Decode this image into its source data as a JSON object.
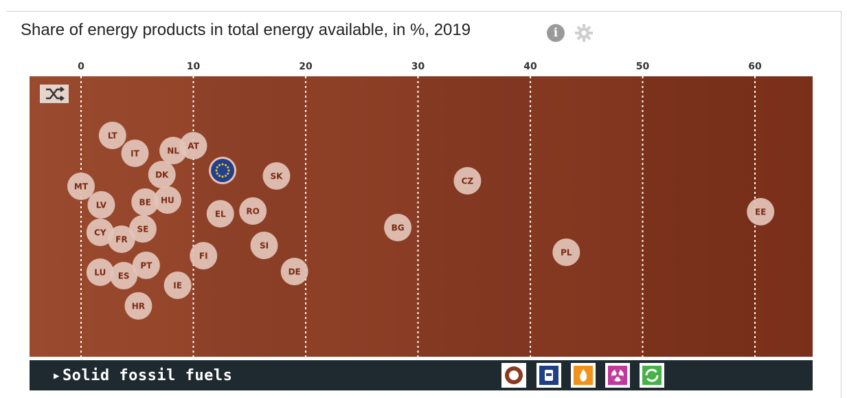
{
  "title": "Share of energy products in total energy available, in %, 2019",
  "icons": {
    "info": "info-icon",
    "settings": "gear-icon",
    "shuffle": "shuffle-icon"
  },
  "colors": {
    "plot_background": "#8b3a22",
    "bubble": "#e2c4b8",
    "bubble_text": "#7a2a12",
    "eu_bubble": "#233f8f",
    "footer": "#1f2a30"
  },
  "footer": {
    "selected_product": "Solid fossil fuels",
    "product_buttons": [
      {
        "name": "solid-fossil-fuels",
        "icon": "coal-icon",
        "color": "#8b3a22"
      },
      {
        "name": "oil",
        "icon": "oil-barrel-icon",
        "color": "#1f3f86"
      },
      {
        "name": "natural-gas",
        "icon": "flame-icon",
        "color": "#f0931c"
      },
      {
        "name": "nuclear",
        "icon": "radiation-icon",
        "color": "#c2399c"
      },
      {
        "name": "renewables",
        "icon": "recycle-icon",
        "color": "#48b24a"
      }
    ]
  },
  "chart_data": {
    "type": "scatter",
    "title": "Share of energy products in total energy available, in %, 2019",
    "xlabel": "",
    "ylabel": "",
    "xlim": [
      -4.5,
      65
    ],
    "x_ticks": [
      0,
      10,
      20,
      30,
      40,
      50,
      60
    ],
    "grid": "vertical dotted",
    "points": [
      {
        "label": "LT",
        "x": 2.8
      },
      {
        "label": "IT",
        "x": 4.8
      },
      {
        "label": "NL",
        "x": 8.2
      },
      {
        "label": "AT",
        "x": 10.0
      },
      {
        "label": "DK",
        "x": 7.2
      },
      {
        "label": "MT",
        "x": 0.0
      },
      {
        "label": "LV",
        "x": 1.8
      },
      {
        "label": "BE",
        "x": 5.7
      },
      {
        "label": "HU",
        "x": 7.7
      },
      {
        "label": "CY",
        "x": 1.7
      },
      {
        "label": "FR",
        "x": 3.6
      },
      {
        "label": "SE",
        "x": 5.5
      },
      {
        "label": "LU",
        "x": 1.7
      },
      {
        "label": "ES",
        "x": 3.8
      },
      {
        "label": "PT",
        "x": 5.8
      },
      {
        "label": "HR",
        "x": 5.1
      },
      {
        "label": "IE",
        "x": 8.6
      },
      {
        "label": "FI",
        "x": 10.9
      },
      {
        "label": "EU",
        "x": 12.6
      },
      {
        "label": "EL",
        "x": 12.4
      },
      {
        "label": "RO",
        "x": 15.3
      },
      {
        "label": "SK",
        "x": 17.4
      },
      {
        "label": "SI",
        "x": 16.3
      },
      {
        "label": "DE",
        "x": 19.0
      },
      {
        "label": "BG",
        "x": 28.2
      },
      {
        "label": "CZ",
        "x": 34.4
      },
      {
        "label": "PL",
        "x": 43.2
      },
      {
        "label": "EE",
        "x": 60.5
      }
    ]
  }
}
